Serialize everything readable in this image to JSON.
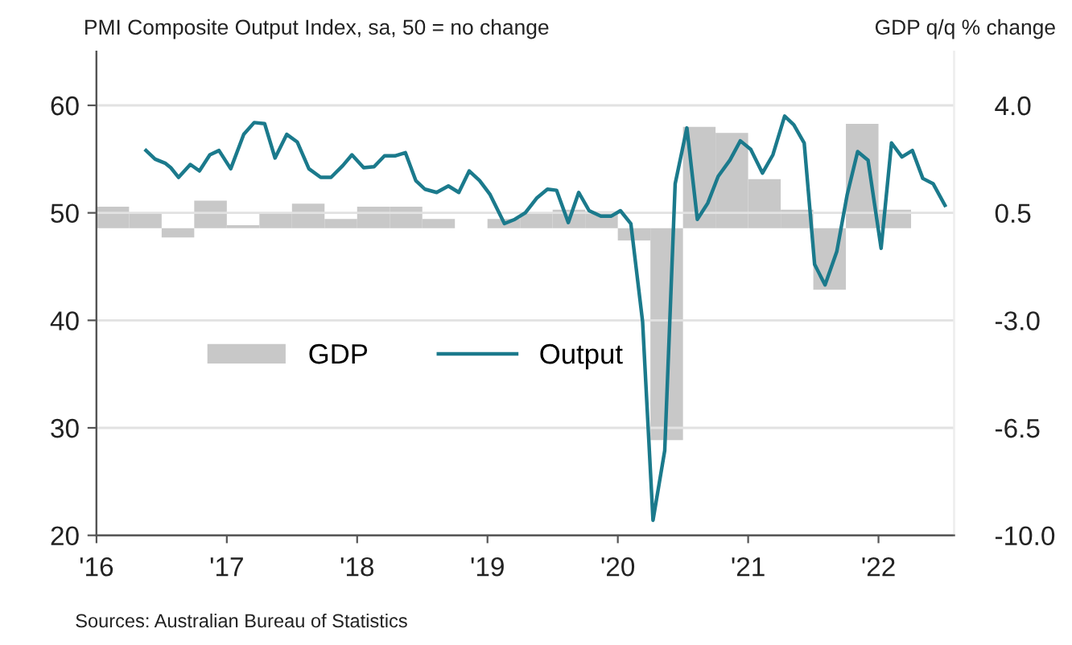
{
  "chart_data": {
    "type": "line",
    "ylabel": "PMI Composite Output Index, sa, 50 = no change",
    "y2label": "GDP q/q % change",
    "annotations": [
      "Sources: Australian Bureau of Statistics"
    ],
    "xlim": [
      2016,
      2022.58
    ],
    "xticks": [
      {
        "value": 2016,
        "label": "'16"
      },
      {
        "value": 2017,
        "label": "'17"
      },
      {
        "value": 2018,
        "label": "'18"
      },
      {
        "value": 2019,
        "label": "'19"
      },
      {
        "value": 2020,
        "label": "'20"
      },
      {
        "value": 2021,
        "label": "'21"
      },
      {
        "value": 2022,
        "label": "'22"
      }
    ],
    "ylim": [
      20,
      65
    ],
    "yticks": [
      20,
      30,
      40,
      50,
      60
    ],
    "y2lim": [
      -10,
      5.75
    ],
    "y2ticks": [
      {
        "value": 4,
        "label": "4.0"
      },
      {
        "value": 0.5,
        "label": "0.5"
      },
      {
        "value": -3,
        "label": "-3.0"
      },
      {
        "value": -6.5,
        "label": "-6.5"
      },
      {
        "value": -10,
        "label": "-10.0"
      }
    ],
    "grid": "y",
    "legend": "left",
    "marker": "none",
    "line_style": "solid",
    "series": [
      {
        "name": "GDP",
        "type": "bar",
        "axis": "y2",
        "color": "#c8c8c8",
        "x": [
          2016.125,
          2016.375,
          2016.625,
          2016.875,
          2017.125,
          2017.375,
          2017.625,
          2017.875,
          2018.125,
          2018.375,
          2018.625,
          2018.875,
          2019.125,
          2019.375,
          2019.625,
          2019.875,
          2020.125,
          2020.375,
          2020.625,
          2020.875,
          2021.125,
          2021.375,
          2021.625,
          2021.875,
          2022.125
        ],
        "values": [
          0.7,
          0.5,
          -0.3,
          0.9,
          0.1,
          0.5,
          0.8,
          0.3,
          0.7,
          0.7,
          0.3,
          null,
          0.3,
          0.5,
          0.6,
          0.55,
          -0.4,
          -6.9,
          3.3,
          3.1,
          1.6,
          0.6,
          -2.0,
          3.4,
          0.6
        ]
      },
      {
        "name": "Output",
        "color": "#1b7a8c",
        "x": [
          2016.38,
          2016.45,
          2016.53,
          2016.57,
          2016.63,
          2016.72,
          2016.79,
          2016.87,
          2016.94,
          2017.03,
          2017.13,
          2017.21,
          2017.29,
          2017.37,
          2017.46,
          2017.54,
          2017.63,
          2017.72,
          2017.8,
          2017.89,
          2017.96,
          2018.05,
          2018.13,
          2018.21,
          2018.29,
          2018.37,
          2018.45,
          2018.52,
          2018.61,
          2018.7,
          2018.78,
          2018.86,
          2018.94,
          2019.02,
          2019.13,
          2019.21,
          2019.29,
          2019.38,
          2019.46,
          2019.53,
          2019.62,
          2019.7,
          2019.78,
          2019.87,
          2019.95,
          2020.02,
          2020.1,
          2020.19,
          2020.27,
          2020.36,
          2020.44,
          2020.53,
          2020.61,
          2020.69,
          2020.77,
          2020.86,
          2020.94,
          2021.02,
          2021.11,
          2021.19,
          2021.28,
          2021.35,
          2021.43,
          2021.51,
          2021.59,
          2021.68,
          2021.76,
          2021.84,
          2021.92,
          2022.02,
          2022.1,
          2022.18,
          2022.26,
          2022.34,
          2022.42,
          2022.51
        ],
        "values": [
          55.8,
          55.0,
          54.6,
          54.2,
          53.3,
          54.5,
          53.9,
          55.4,
          55.8,
          54.1,
          57.3,
          58.4,
          58.3,
          55.1,
          57.3,
          56.6,
          54.1,
          53.3,
          53.3,
          54.4,
          55.4,
          54.2,
          54.3,
          55.3,
          55.3,
          55.6,
          53.0,
          52.2,
          51.9,
          52.5,
          51.9,
          53.9,
          53.0,
          51.7,
          49.0,
          49.4,
          50.0,
          51.4,
          52.2,
          52.1,
          49.1,
          51.9,
          50.2,
          49.7,
          49.7,
          50.2,
          49.0,
          39.9,
          21.4,
          27.9,
          52.7,
          57.9,
          49.4,
          50.9,
          53.4,
          54.9,
          56.7,
          55.9,
          53.7,
          55.4,
          59.0,
          58.2,
          56.5,
          45.2,
          43.3,
          46.4,
          51.7,
          55.7,
          54.9,
          46.7,
          56.5,
          55.2,
          55.8,
          53.2,
          52.7,
          50.7
        ]
      }
    ]
  }
}
